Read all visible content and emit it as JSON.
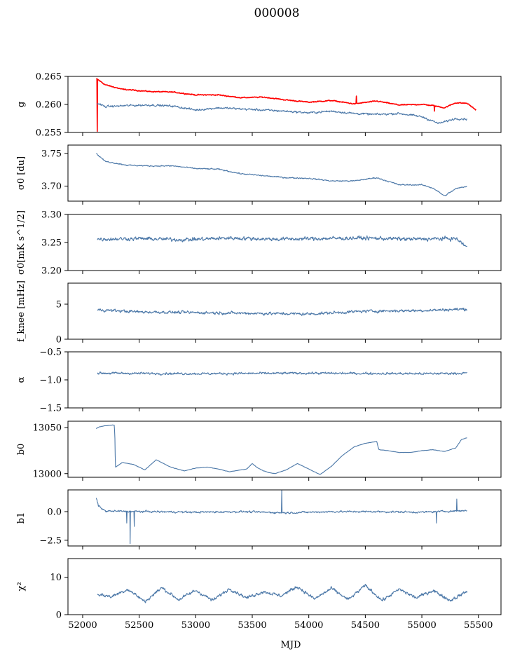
{
  "figure": {
    "title": "000008"
  },
  "style": {
    "series_color": "#4c78a8",
    "overlay_color": "#ff0000",
    "axis_color": "#000000"
  },
  "chart_data": [
    {
      "type": "line",
      "ylabel": "g",
      "ylim": [
        0.255,
        0.265
      ],
      "yticks": [
        "0.265",
        "0.260",
        "0.255"
      ],
      "ytick_values": [
        0.265,
        0.26,
        0.255
      ],
      "series": [
        {
          "color": "#ff0000",
          "noise": 0.00025,
          "x": [
            52120,
            52130,
            52200,
            52350,
            52600,
            52800,
            53000,
            53200,
            53400,
            53600,
            53800,
            54000,
            54200,
            54400,
            54600,
            54800,
            55000,
            55100,
            55200,
            55300,
            55400,
            55480
          ],
          "y": [
            0.2645,
            0.2645,
            0.2635,
            0.2627,
            0.2623,
            0.2622,
            0.2617,
            0.2617,
            0.2612,
            0.2613,
            0.2608,
            0.2604,
            0.2607,
            0.2601,
            0.2606,
            0.2599,
            0.26,
            0.2598,
            0.2594,
            0.2603,
            0.2602,
            0.259
          ],
          "spikes": [
            {
              "x": 52130,
              "y": 0.2552
            },
            {
              "x": 54420,
              "y": 0.2615
            },
            {
              "x": 55110,
              "y": 0.2588
            }
          ]
        },
        {
          "color": "#4c78a8",
          "noise": 0.0005,
          "x": [
            52130,
            52200,
            52400,
            52600,
            52800,
            53000,
            53200,
            53400,
            53600,
            53800,
            54000,
            54200,
            54400,
            54600,
            54800,
            55000,
            55150,
            55300,
            55400
          ],
          "y": [
            0.2602,
            0.2596,
            0.2598,
            0.2599,
            0.2597,
            0.259,
            0.2594,
            0.2592,
            0.259,
            0.2588,
            0.2585,
            0.2588,
            0.2584,
            0.2582,
            0.2584,
            0.2578,
            0.2566,
            0.2575,
            0.2574
          ]
        }
      ]
    },
    {
      "type": "line",
      "ylabel": "σ0 [du]",
      "ylim": [
        3.677,
        3.763
      ],
      "yticks": [
        "3.75",
        "3.70"
      ],
      "ytick_values": [
        3.75,
        3.7
      ],
      "series": [
        {
          "color": "#4c78a8",
          "noise": 0.0025,
          "x": [
            52120,
            52200,
            52400,
            52600,
            52800,
            53000,
            53200,
            53400,
            53600,
            53800,
            54000,
            54200,
            54400,
            54600,
            54800,
            55000,
            55100,
            55200,
            55300,
            55400
          ],
          "y": [
            3.75,
            3.738,
            3.732,
            3.731,
            3.731,
            3.727,
            3.726,
            3.719,
            3.716,
            3.713,
            3.712,
            3.708,
            3.708,
            3.713,
            3.702,
            3.702,
            3.697,
            3.685,
            3.696,
            3.7
          ]
        }
      ]
    },
    {
      "type": "line",
      "ylabel": "σ0[mK s^1/2]",
      "ylim": [
        3.2,
        3.3
      ],
      "yticks": [
        "3.30",
        "3.25",
        "3.20"
      ],
      "ytick_values": [
        3.3,
        3.25,
        3.2
      ],
      "series": [
        {
          "color": "#4c78a8",
          "noise": 0.009,
          "x": [
            52130,
            52500,
            52900,
            53300,
            53700,
            54100,
            54500,
            54900,
            55300,
            55400
          ],
          "y": [
            3.256,
            3.257,
            3.255,
            3.258,
            3.256,
            3.257,
            3.258,
            3.256,
            3.257,
            3.242
          ]
        }
      ]
    },
    {
      "type": "line",
      "ylabel": "f_knee [mHz]",
      "ylim": [
        0,
        8
      ],
      "yticks": [
        "5",
        "0"
      ],
      "ytick_values": [
        5,
        0
      ],
      "series": [
        {
          "color": "#4c78a8",
          "noise": 0.55,
          "x": [
            52130,
            52500,
            53000,
            53500,
            54000,
            54500,
            55000,
            55400
          ],
          "y": [
            4.2,
            3.9,
            3.8,
            3.7,
            3.6,
            4.0,
            4.1,
            4.3
          ]
        }
      ]
    },
    {
      "type": "line",
      "ylabel": "α",
      "ylim": [
        -1.5,
        -0.5
      ],
      "yticks": [
        "−0.5",
        "−1.0",
        "−1.5"
      ],
      "ytick_values": [
        -0.5,
        -1.0,
        -1.5
      ],
      "series": [
        {
          "color": "#4c78a8",
          "noise": 0.055,
          "x": [
            52130,
            53000,
            54000,
            55000,
            55400
          ],
          "y": [
            -0.88,
            -0.89,
            -0.88,
            -0.89,
            -0.88
          ]
        }
      ]
    },
    {
      "type": "line",
      "ylabel": "b0",
      "ylim": [
        12996,
        13057
      ],
      "yticks": [
        "13050",
        "13000"
      ],
      "ytick_values": [
        13050,
        13000
      ],
      "series": [
        {
          "color": "#4c78a8",
          "noise": 0.5,
          "x": [
            52120,
            52150,
            52200,
            52280,
            52285,
            52290,
            52350,
            52450,
            52550,
            52650,
            52780,
            52900,
            53000,
            53100,
            53200,
            53300,
            53450,
            53500,
            53550,
            53600,
            53650,
            53700,
            53800,
            53900,
            54000,
            54100,
            54200,
            54300,
            54400,
            54500,
            54600,
            54620,
            54700,
            54800,
            54900,
            55000,
            55100,
            55200,
            55300,
            55350,
            55400
          ],
          "y": [
            13049,
            13051,
            13052,
            13053,
            13038,
            13007,
            13012,
            13010,
            13004,
            13015,
            13007,
            13003,
            13006,
            13007,
            13005,
            13002,
            13005,
            13011,
            13006,
            13003,
            13001,
            13000,
            13004,
            13011,
            13005,
            12999,
            13008,
            13020,
            13029,
            13033,
            13035,
            13026,
            13025,
            13023,
            13023,
            13025,
            13026,
            13024,
            13028,
            13037,
            13039
          ]
        }
      ]
    },
    {
      "type": "line",
      "ylabel": "b1",
      "ylim": [
        -3.0,
        1.9
      ],
      "yticks": [
        "0.0",
        "−2.5"
      ],
      "ytick_values": [
        0.0,
        -2.5
      ],
      "series": [
        {
          "color": "#4c78a8",
          "noise": 0.22,
          "x": [
            52120,
            52140,
            52200,
            52600,
            53000,
            53400,
            53800,
            54200,
            54600,
            55000,
            55400
          ],
          "y": [
            1.2,
            0.5,
            0.05,
            0.0,
            -0.05,
            0.0,
            -0.1,
            0.0,
            0.0,
            -0.05,
            0.1
          ],
          "spikes": [
            {
              "x": 52390,
              "y": -1.0
            },
            {
              "x": 52420,
              "y": -2.8
            },
            {
              "x": 52455,
              "y": -1.3
            },
            {
              "x": 53760,
              "y": 1.9
            },
            {
              "x": 55130,
              "y": -1.0
            },
            {
              "x": 55310,
              "y": 1.1
            }
          ]
        }
      ]
    },
    {
      "type": "line",
      "ylabel": "χ²",
      "ylim": [
        0,
        15
      ],
      "yticks": [
        "10",
        "0"
      ],
      "ytick_values": [
        10,
        0
      ],
      "xlabel": "MJD",
      "xlim": [
        51870,
        55700
      ],
      "xticks": [
        "52000",
        "52500",
        "53000",
        "53500",
        "54000",
        "54500",
        "55000",
        "55500"
      ],
      "xtick_values": [
        52000,
        52500,
        53000,
        53500,
        54000,
        54500,
        55000,
        55500
      ],
      "series": [
        {
          "color": "#4c78a8",
          "noise": 1.2,
          "x": [
            52130,
            52250,
            52400,
            52550,
            52700,
            52850,
            53000,
            53150,
            53300,
            53450,
            53600,
            53750,
            53900,
            54050,
            54200,
            54350,
            54500,
            54650,
            54800,
            54950,
            55100,
            55250,
            55400
          ],
          "y": [
            5.5,
            4.8,
            6.8,
            3.5,
            7.2,
            4.0,
            6.5,
            3.8,
            7.0,
            4.5,
            6.2,
            5.0,
            7.5,
            4.2,
            7.0,
            4.0,
            7.8,
            3.8,
            6.8,
            4.5,
            6.5,
            3.8,
            6.2
          ]
        }
      ]
    }
  ]
}
